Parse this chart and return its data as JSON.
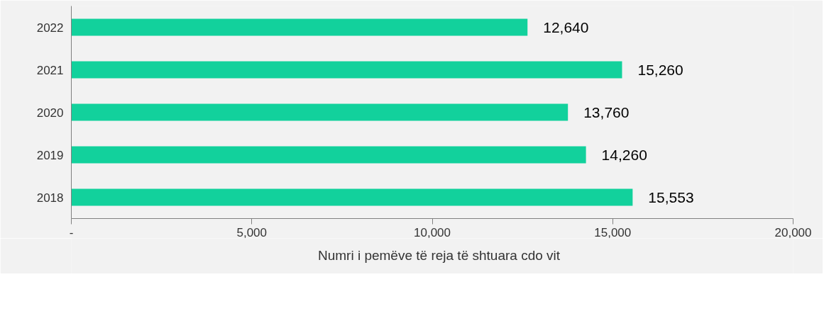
{
  "chart_data": {
    "type": "bar",
    "orientation": "horizontal",
    "categories": [
      "2022",
      "2021",
      "2020",
      "2019",
      "2018"
    ],
    "series": [
      {
        "name": "Numri i pemëve të reja të shtuara cdo vit",
        "color": "#12d19c",
        "values": [
          12640,
          15260,
          13760,
          14260,
          15553
        ],
        "value_labels": [
          "12,640",
          "15,260",
          "13,760",
          "14,260",
          "15,553"
        ]
      }
    ],
    "xlim": [
      0,
      20000
    ],
    "xticks": [
      {
        "value": 0,
        "label": "-"
      },
      {
        "value": 5000,
        "label": "5,000"
      },
      {
        "value": 10000,
        "label": "10,000"
      },
      {
        "value": 15000,
        "label": "15,000"
      },
      {
        "value": 20000,
        "label": "20,000"
      }
    ],
    "data_labels": true,
    "grid": false,
    "legend": "bottom"
  }
}
